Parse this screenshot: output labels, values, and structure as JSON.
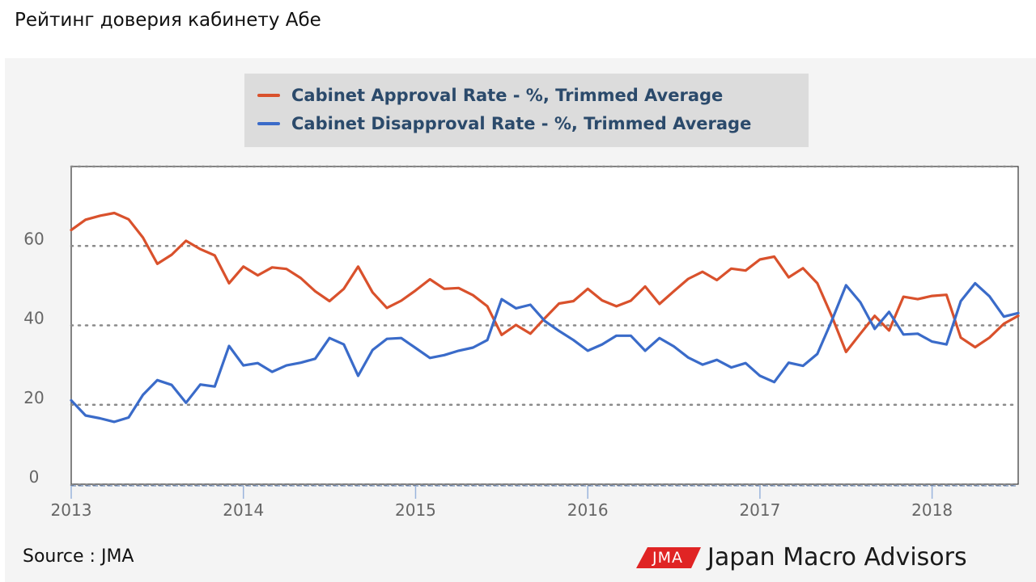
{
  "page": {
    "title": "Рейтинг доверия кабинету Абе",
    "source": "Source : JMA",
    "brand_logo": "JMA",
    "brand_name": "Japan Macro Advisors",
    "colors": {
      "approval": "#d9512c",
      "disapproval": "#3a6bc9",
      "panel": "#f4f4f4",
      "legend_bg": "#dcdcdc",
      "legend_text": "#2b4a6b",
      "logo": "#e02424"
    }
  },
  "chart_data": {
    "type": "line",
    "title": "",
    "xlabel": "",
    "ylabel": "",
    "x_ticks": [
      "2013",
      "2014",
      "2015",
      "2016",
      "2017",
      "2018"
    ],
    "y_ticks": [
      "0",
      "20",
      "40",
      "60"
    ],
    "ylim": [
      0,
      80
    ],
    "x_range": [
      "2013-01",
      "2018-07"
    ],
    "grid": "horizontal dotted",
    "legend_position": "top-center",
    "x": [
      "2013-01",
      "2013-02",
      "2013-03",
      "2013-04",
      "2013-05",
      "2013-06",
      "2013-07",
      "2013-08",
      "2013-09",
      "2013-10",
      "2013-11",
      "2013-12",
      "2014-01",
      "2014-02",
      "2014-03",
      "2014-04",
      "2014-05",
      "2014-06",
      "2014-07",
      "2014-08",
      "2014-09",
      "2014-10",
      "2014-11",
      "2014-12",
      "2015-01",
      "2015-02",
      "2015-03",
      "2015-04",
      "2015-05",
      "2015-06",
      "2015-07",
      "2015-08",
      "2015-09",
      "2015-10",
      "2015-11",
      "2015-12",
      "2016-01",
      "2016-02",
      "2016-03",
      "2016-04",
      "2016-05",
      "2016-06",
      "2016-07",
      "2016-08",
      "2016-09",
      "2016-10",
      "2016-11",
      "2016-12",
      "2017-01",
      "2017-02",
      "2017-03",
      "2017-04",
      "2017-05",
      "2017-06",
      "2017-07",
      "2017-08",
      "2017-09",
      "2017-10",
      "2017-11",
      "2017-12",
      "2018-01",
      "2018-02",
      "2018-03",
      "2018-04",
      "2018-05",
      "2018-06",
      "2018-07"
    ],
    "series": [
      {
        "name": "Cabinet Approval Rate - %, Trimmed Average",
        "values": [
          64,
          66.6,
          67.6,
          68.3,
          66.7,
          62.1,
          55.5,
          57.8,
          61.3,
          59.2,
          57.6,
          50.6,
          54.8,
          52.6,
          54.6,
          54.2,
          51.9,
          48.6,
          46.1,
          49.2,
          54.8,
          48.3,
          44.4,
          46.2,
          48.8,
          51.6,
          49.2,
          49.4,
          47.6,
          44.8,
          37.6,
          40.1,
          37.9,
          41.8,
          45.5,
          46.1,
          49.2,
          46.3,
          44.8,
          46.2,
          49.8,
          45.4,
          48.6,
          51.7,
          53.5,
          51.4,
          54.3,
          53.8,
          56.6,
          57.3,
          52.1,
          54.4,
          50.6,
          42.4,
          33.3,
          37.9,
          42.4,
          38.7,
          47.2,
          46.6,
          47.4,
          47.7,
          36.9,
          34.5,
          36.9,
          40.4,
          42.4
        ]
      },
      {
        "name": "Cabinet Disapproval Rate - %, Trimmed Average",
        "values": [
          21.1,
          17.3,
          16.6,
          15.7,
          16.8,
          22.5,
          26.2,
          25,
          20.5,
          25.1,
          24.6,
          34.8,
          29.9,
          30.5,
          28.3,
          29.9,
          30.6,
          31.6,
          36.8,
          35.2,
          27.3,
          33.8,
          36.6,
          36.8,
          34.3,
          31.8,
          32.5,
          33.6,
          34.4,
          36.3,
          46.6,
          44.3,
          45.2,
          41.1,
          38.6,
          36.3,
          33.6,
          35.2,
          37.4,
          37.4,
          33.6,
          36.8,
          34.7,
          31.9,
          30.1,
          31.3,
          29.4,
          30.5,
          27.3,
          25.7,
          30.6,
          29.8,
          32.8,
          41.1,
          50.1,
          45.8,
          39.1,
          43.4,
          37.7,
          37.9,
          35.9,
          35.2,
          46.1,
          50.6,
          47.3,
          42.2,
          43.1
        ]
      }
    ]
  }
}
